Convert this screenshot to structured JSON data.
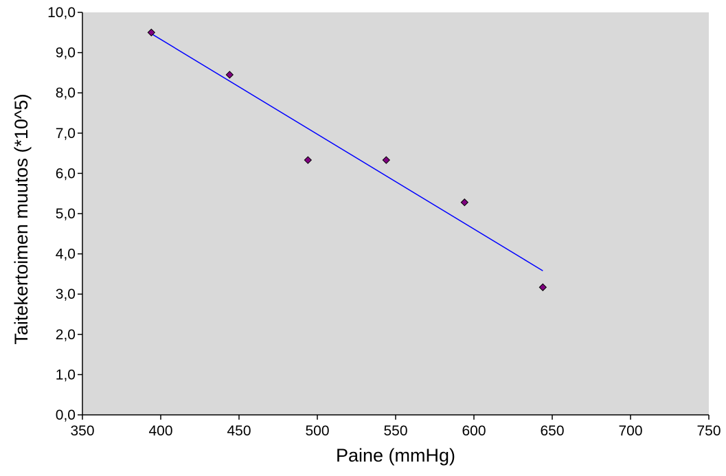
{
  "chart_data": {
    "type": "scatter",
    "title": "",
    "xlabel": "Paine (mmHg)",
    "ylabel": "Taitekertoimen muutos (*10^5)",
    "xlim": [
      350,
      750
    ],
    "ylim": [
      0,
      10
    ],
    "x_ticks": [
      "350",
      "400",
      "450",
      "500",
      "550",
      "600",
      "650",
      "700",
      "750"
    ],
    "y_ticks": [
      "0,0",
      "1,0",
      "2,0",
      "3,0",
      "4,0",
      "5,0",
      "6,0",
      "7,0",
      "8,0",
      "9,0",
      "10,0"
    ],
    "grid": false,
    "legend": "none",
    "series": [
      {
        "kind": "scatter",
        "marker": "diamond",
        "x": [
          394,
          444,
          494,
          544,
          594,
          644
        ],
        "y": [
          9.5,
          8.45,
          6.33,
          6.33,
          5.28,
          3.17
        ]
      }
    ],
    "trendline": {
      "kind": "linear",
      "x": [
        394,
        644
      ],
      "y": [
        9.47,
        3.58
      ]
    },
    "colors": {
      "plot_background": "#d9d9d9",
      "marker_fill": "#800080",
      "marker_edge": "#000000",
      "trendline": "#0000ff",
      "axis": "#000000"
    }
  }
}
